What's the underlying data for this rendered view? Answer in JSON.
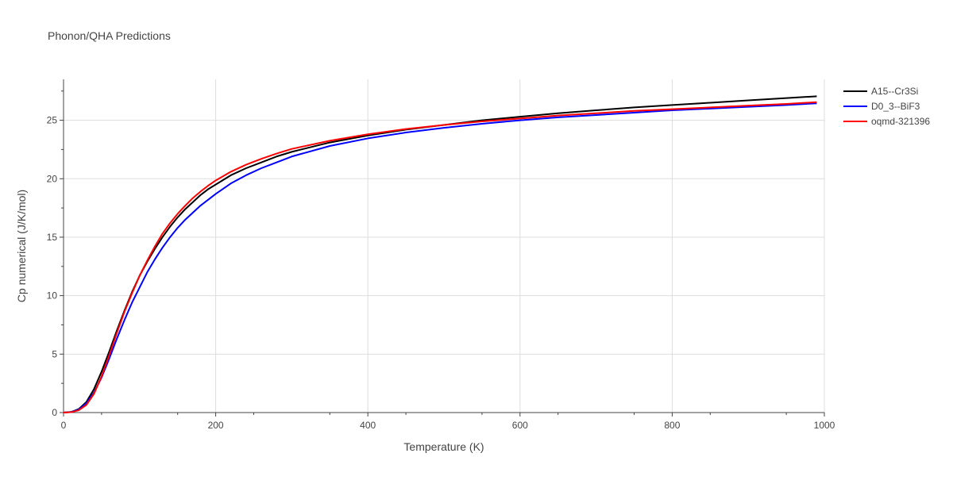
{
  "chart_data": {
    "type": "line",
    "title": "Phonon/QHA Predictions",
    "xlabel": "Temperature (K)",
    "ylabel": "Cp numerical (J/K/mol)",
    "xlim": [
      0,
      1000
    ],
    "ylim": [
      0,
      28.5
    ],
    "xticks": [
      0,
      200,
      400,
      600,
      800,
      1000
    ],
    "yticks": [
      0,
      5,
      10,
      15,
      20,
      25
    ],
    "grid": true,
    "legend_position": "top-right",
    "series": [
      {
        "name": "A15--Cr3Si",
        "color": "#000000",
        "x": [
          0,
          10,
          20,
          30,
          40,
          50,
          60,
          70,
          80,
          90,
          100,
          110,
          120,
          130,
          140,
          150,
          160,
          170,
          180,
          190,
          200,
          220,
          240,
          260,
          280,
          300,
          350,
          400,
          450,
          500,
          550,
          600,
          650,
          700,
          750,
          800,
          850,
          900,
          950,
          990
        ],
        "y": [
          0,
          0.05,
          0.3,
          0.9,
          2.0,
          3.5,
          5.2,
          7.0,
          8.7,
          10.3,
          11.7,
          12.9,
          14.0,
          15.0,
          15.9,
          16.7,
          17.4,
          18.0,
          18.6,
          19.1,
          19.5,
          20.3,
          20.9,
          21.4,
          21.9,
          22.3,
          23.1,
          23.7,
          24.2,
          24.6,
          25.0,
          25.3,
          25.6,
          25.85,
          26.1,
          26.3,
          26.5,
          26.7,
          26.9,
          27.05
        ]
      },
      {
        "name": "D0_3--BiF3",
        "color": "#0000ff",
        "x": [
          0,
          10,
          20,
          30,
          40,
          50,
          60,
          70,
          80,
          90,
          100,
          110,
          120,
          130,
          140,
          150,
          160,
          170,
          180,
          190,
          200,
          220,
          240,
          260,
          280,
          300,
          350,
          400,
          450,
          500,
          550,
          600,
          650,
          700,
          750,
          800,
          850,
          900,
          950,
          990
        ],
        "y": [
          0,
          0.05,
          0.25,
          0.8,
          1.7,
          3.0,
          4.6,
          6.3,
          7.9,
          9.4,
          10.7,
          12.0,
          13.1,
          14.1,
          15.0,
          15.8,
          16.5,
          17.1,
          17.7,
          18.2,
          18.7,
          19.6,
          20.3,
          20.9,
          21.4,
          21.9,
          22.8,
          23.45,
          23.95,
          24.35,
          24.7,
          25.0,
          25.25,
          25.45,
          25.65,
          25.85,
          26.0,
          26.15,
          26.3,
          26.45
        ]
      },
      {
        "name": "oqmd-321396",
        "color": "#ff0000",
        "x": [
          0,
          10,
          20,
          30,
          40,
          50,
          60,
          70,
          80,
          90,
          100,
          110,
          120,
          130,
          140,
          150,
          160,
          170,
          180,
          190,
          200,
          220,
          240,
          260,
          280,
          300,
          350,
          400,
          450,
          500,
          550,
          600,
          650,
          700,
          750,
          800,
          850,
          900,
          950,
          990
        ],
        "y": [
          0,
          0.03,
          0.2,
          0.65,
          1.6,
          3.1,
          4.9,
          6.8,
          8.6,
          10.2,
          11.7,
          13.0,
          14.2,
          15.3,
          16.2,
          17.0,
          17.7,
          18.35,
          18.9,
          19.4,
          19.85,
          20.6,
          21.2,
          21.7,
          22.15,
          22.55,
          23.25,
          23.8,
          24.25,
          24.6,
          24.9,
          25.15,
          25.4,
          25.6,
          25.8,
          25.95,
          26.1,
          26.25,
          26.4,
          26.55
        ]
      }
    ]
  }
}
